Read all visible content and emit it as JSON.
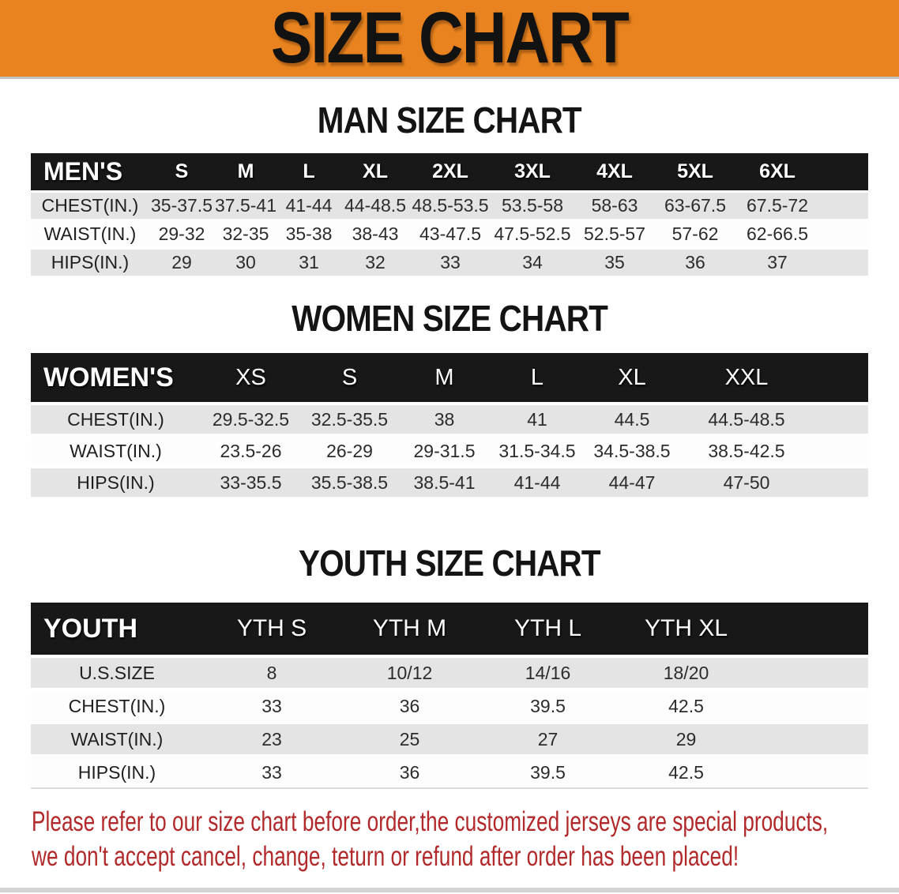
{
  "banner": {
    "title": "SIZE CHART"
  },
  "colors": {
    "banner_bg": "#E8831F",
    "table_header_bg": "#181818",
    "row_gray": "#E4E4E4",
    "disclaimer_red": "#B1292B"
  },
  "men": {
    "section_title": "MAN SIZE CHART",
    "corner_label": "MEN'S",
    "sizes": [
      "S",
      "M",
      "L",
      "XL",
      "2XL",
      "3XL",
      "4XL",
      "5XL",
      "6XL"
    ],
    "rows": [
      {
        "label": "CHEST(IN.)",
        "values": [
          "35-37.5",
          "37.5-41",
          "41-44",
          "44-48.5",
          "48.5-53.5",
          "53.5-58",
          "58-63",
          "63-67.5",
          "67.5-72"
        ]
      },
      {
        "label": "WAIST(IN.)",
        "values": [
          "29-32",
          "32-35",
          "35-38",
          "38-43",
          "43-47.5",
          "47.5-52.5",
          "52.5-57",
          "57-62",
          "62-66.5"
        ]
      },
      {
        "label": "HIPS(IN.)",
        "values": [
          "29",
          "30",
          "31",
          "32",
          "33",
          "34",
          "35",
          "36",
          "37"
        ]
      }
    ]
  },
  "women": {
    "section_title": "WOMEN SIZE CHART",
    "corner_label": "WOMEN'S",
    "sizes": [
      "XS",
      "S",
      "M",
      "L",
      "XL",
      "XXL"
    ],
    "rows": [
      {
        "label": "CHEST(IN.)",
        "values": [
          "29.5-32.5",
          "32.5-35.5",
          "38",
          "41",
          "44.5",
          "44.5-48.5"
        ]
      },
      {
        "label": "WAIST(IN.)",
        "values": [
          "23.5-26",
          "26-29",
          "29-31.5",
          "31.5-34.5",
          "34.5-38.5",
          "38.5-42.5"
        ]
      },
      {
        "label": "HIPS(IN.)",
        "values": [
          "33-35.5",
          "35.5-38.5",
          "38.5-41",
          "41-44",
          "44-47",
          "47-50"
        ]
      }
    ]
  },
  "youth": {
    "section_title": "YOUTH SIZE CHART",
    "corner_label": "YOUTH",
    "sizes": [
      "YTH S",
      "YTH M",
      "YTH L",
      "YTH XL"
    ],
    "rows": [
      {
        "label": "U.S.SIZE",
        "values": [
          "8",
          "10/12",
          "14/16",
          "18/20"
        ]
      },
      {
        "label": "CHEST(IN.)",
        "values": [
          "33",
          "36",
          "39.5",
          "42.5"
        ]
      },
      {
        "label": "WAIST(IN.)",
        "values": [
          "23",
          "25",
          "27",
          "29"
        ]
      },
      {
        "label": "HIPS(IN.)",
        "values": [
          "33",
          "36",
          "39.5",
          "42.5"
        ]
      }
    ]
  },
  "disclaimer": {
    "line1": "Please refer to our size chart before order,the customized jerseys are special products,",
    "line2": "we don't accept cancel, change, teturn or refund after order has been placed!"
  }
}
